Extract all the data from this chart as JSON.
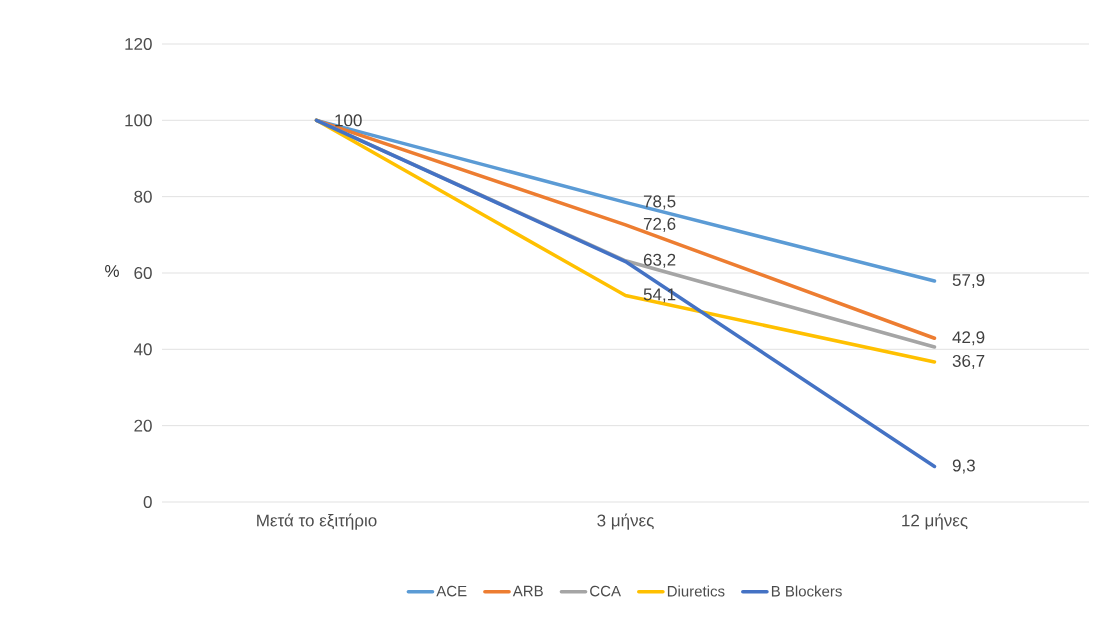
{
  "chart_data": {
    "type": "line",
    "ylabel": "%",
    "categories": [
      "Μετά το εξιτήριο",
      "3 μήνες",
      "12 μήνες"
    ],
    "series": [
      {
        "name": "ACE",
        "color": "#5b9bd5",
        "values": [
          100,
          78.5,
          57.9
        ],
        "value_labels": [
          null,
          "78,5",
          "57,9"
        ]
      },
      {
        "name": "ARB",
        "color": "#ed7d31",
        "values": [
          100,
          72.6,
          42.9
        ],
        "value_labels": [
          null,
          "72,6",
          "42,9"
        ]
      },
      {
        "name": "CCA",
        "color": "#a5a5a5",
        "values": [
          100,
          63.2,
          40.6
        ],
        "value_labels": [
          null,
          "63,2",
          null
        ]
      },
      {
        "name": "Diuretics",
        "color": "#ffc000",
        "values": [
          100,
          54.1,
          36.7
        ],
        "value_labels": [
          null,
          "54,1",
          "36,7"
        ]
      },
      {
        "name": "B Blockers",
        "color": "#4472c4",
        "values": [
          100,
          63,
          9.3
        ],
        "value_labels": [
          "100",
          null,
          "9,3"
        ]
      }
    ],
    "ylim": [
      0,
      120
    ],
    "yticks": [
      0,
      20,
      40,
      60,
      80,
      100,
      120
    ],
    "grid": "y",
    "legend": "bottom"
  }
}
